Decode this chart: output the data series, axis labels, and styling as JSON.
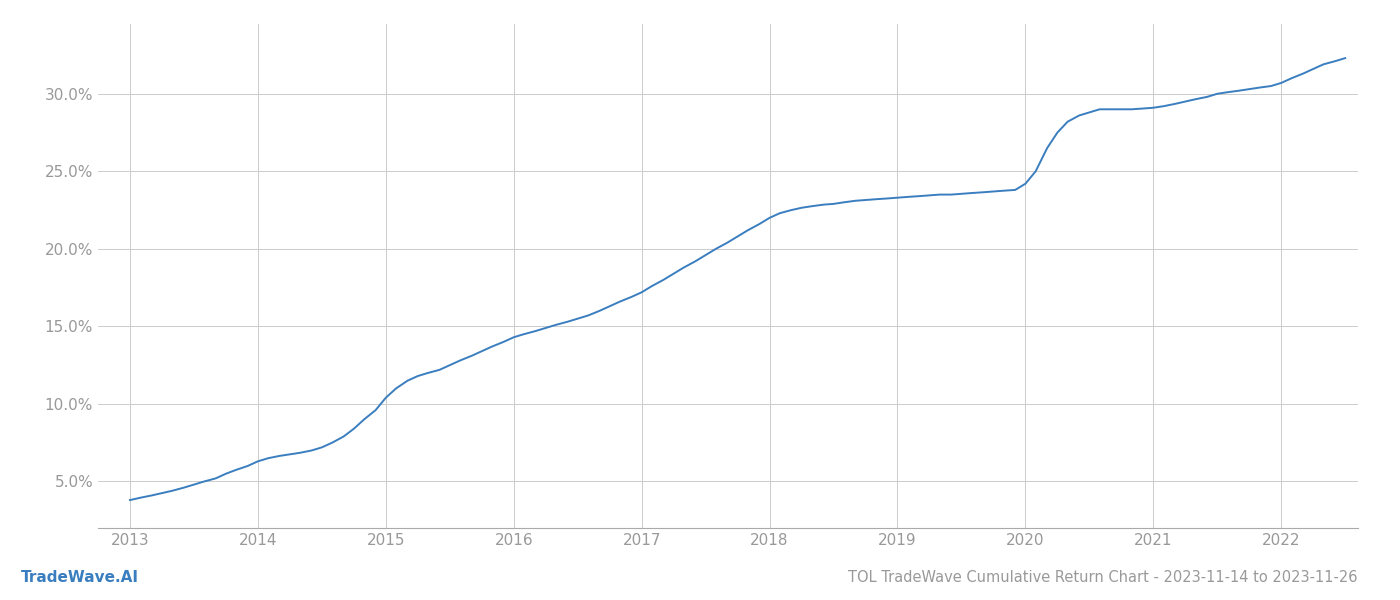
{
  "title": "TOL TradeWave Cumulative Return Chart - 2023-11-14 to 2023-11-26",
  "watermark": "TradeWave.AI",
  "line_color": "#3a7ebf",
  "background_color": "#ffffff",
  "grid_color": "#cccccc",
  "x_years": [
    2013,
    2014,
    2015,
    2016,
    2017,
    2018,
    2019,
    2020,
    2021,
    2022
  ],
  "x_data": [
    2013.0,
    2013.08,
    2013.17,
    2013.25,
    2013.33,
    2013.42,
    2013.5,
    2013.58,
    2013.67,
    2013.75,
    2013.83,
    2013.92,
    2014.0,
    2014.08,
    2014.17,
    2014.25,
    2014.33,
    2014.42,
    2014.5,
    2014.58,
    2014.67,
    2014.75,
    2014.83,
    2014.92,
    2015.0,
    2015.08,
    2015.17,
    2015.25,
    2015.33,
    2015.42,
    2015.5,
    2015.58,
    2015.67,
    2015.75,
    2015.83,
    2015.92,
    2016.0,
    2016.08,
    2016.17,
    2016.25,
    2016.33,
    2016.42,
    2016.5,
    2016.58,
    2016.67,
    2016.75,
    2016.83,
    2016.92,
    2017.0,
    2017.08,
    2017.17,
    2017.25,
    2017.33,
    2017.42,
    2017.5,
    2017.58,
    2017.67,
    2017.75,
    2017.83,
    2017.92,
    2018.0,
    2018.08,
    2018.17,
    2018.25,
    2018.33,
    2018.42,
    2018.5,
    2018.58,
    2018.67,
    2018.75,
    2018.83,
    2018.92,
    2019.0,
    2019.08,
    2019.17,
    2019.25,
    2019.33,
    2019.42,
    2019.5,
    2019.58,
    2019.67,
    2019.75,
    2019.83,
    2019.92,
    2020.0,
    2020.08,
    2020.17,
    2020.25,
    2020.33,
    2020.42,
    2020.5,
    2020.58,
    2020.67,
    2020.75,
    2020.83,
    2020.92,
    2021.0,
    2021.08,
    2021.17,
    2021.25,
    2021.33,
    2021.42,
    2021.5,
    2021.58,
    2021.67,
    2021.75,
    2021.83,
    2021.92,
    2022.0,
    2022.08,
    2022.17,
    2022.25,
    2022.33,
    2022.42,
    2022.5
  ],
  "y_data": [
    3.8,
    3.95,
    4.1,
    4.25,
    4.4,
    4.6,
    4.8,
    5.0,
    5.2,
    5.5,
    5.75,
    6.0,
    6.3,
    6.5,
    6.65,
    6.75,
    6.85,
    7.0,
    7.2,
    7.5,
    7.9,
    8.4,
    9.0,
    9.6,
    10.4,
    11.0,
    11.5,
    11.8,
    12.0,
    12.2,
    12.5,
    12.8,
    13.1,
    13.4,
    13.7,
    14.0,
    14.3,
    14.5,
    14.7,
    14.9,
    15.1,
    15.3,
    15.5,
    15.7,
    16.0,
    16.3,
    16.6,
    16.9,
    17.2,
    17.6,
    18.0,
    18.4,
    18.8,
    19.2,
    19.6,
    20.0,
    20.4,
    20.8,
    21.2,
    21.6,
    22.0,
    22.3,
    22.5,
    22.65,
    22.75,
    22.85,
    22.9,
    23.0,
    23.1,
    23.15,
    23.2,
    23.25,
    23.3,
    23.35,
    23.4,
    23.45,
    23.5,
    23.5,
    23.55,
    23.6,
    23.65,
    23.7,
    23.75,
    23.8,
    24.2,
    25.0,
    26.5,
    27.5,
    28.2,
    28.6,
    28.8,
    29.0,
    29.0,
    29.0,
    29.0,
    29.05,
    29.1,
    29.2,
    29.35,
    29.5,
    29.65,
    29.8,
    30.0,
    30.1,
    30.2,
    30.3,
    30.4,
    30.5,
    30.7,
    31.0,
    31.3,
    31.6,
    31.9,
    32.1,
    32.3
  ],
  "yticks": [
    5.0,
    10.0,
    15.0,
    20.0,
    25.0,
    30.0
  ],
  "ylim": [
    2.0,
    34.5
  ],
  "xlim": [
    2012.75,
    2022.6
  ],
  "title_fontsize": 10.5,
  "watermark_fontsize": 11,
  "tick_fontsize": 11,
  "tick_color": "#999999",
  "watermark_color": "#3a7ebf",
  "spine_color": "#aaaaaa"
}
